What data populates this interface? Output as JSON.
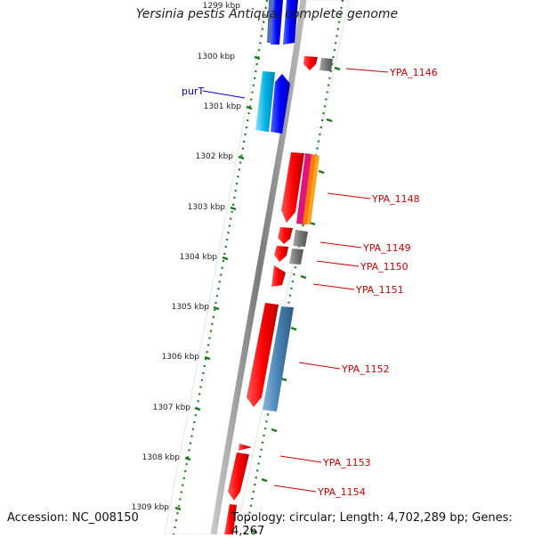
{
  "title": "Yersinia pestis Antiqua, complete genome",
  "footer": {
    "accession": "Accession: NC_008150",
    "topology": "Topology: circular; Length: 4,702,289 bp; Genes: 4,267"
  },
  "ticks": [
    "1299 kbp",
    "1300 kbp",
    "1301 kbp",
    "1302 kbp",
    "1303 kbp",
    "1304 kbp",
    "1305 kbp",
    "1306 kbp",
    "1307 kbp",
    "1308 kbp",
    "1309 kbp"
  ],
  "gene_labels": {
    "purT": "purT",
    "g1146": "YPA_1146",
    "g1148": "YPA_1148",
    "g1149": "YPA_1149",
    "g1150": "YPA_1150",
    "g1151": "YPA_1151",
    "g1152": "YPA_1152",
    "g1153": "YPA_1153",
    "g1154": "YPA_1154"
  },
  "colors": {
    "backbone": "#808080",
    "ruler": "#1a7a1a",
    "gene_red": "#ff0000",
    "gene_blue": "#0000ff",
    "gene_cyan": "#00b4e6",
    "gene_steel": "#4682b4",
    "gene_gray": "#777777",
    "label_red": "#cc0000",
    "label_blue": "#0000cc"
  }
}
